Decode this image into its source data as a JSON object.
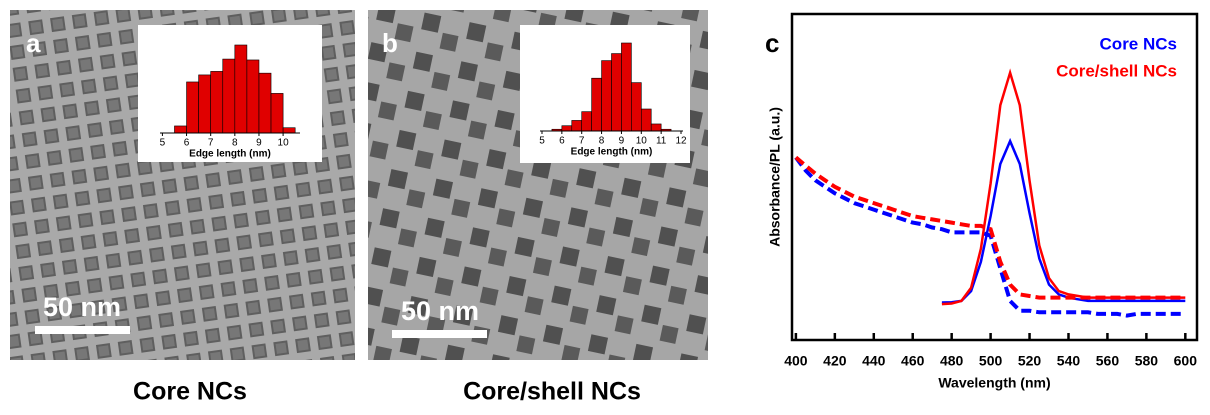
{
  "panels": [
    {
      "label": "a",
      "scale_bar": "50 nm",
      "caption": "Core NCs"
    },
    {
      "label": "b",
      "scale_bar": "50 nm",
      "caption": "Core/shell NCs"
    },
    {
      "label": "c"
    }
  ],
  "chart_data": [
    {
      "type": "histogram",
      "xlabel": "Edge length (nm)",
      "color": "#e00000",
      "bins": [
        5.5,
        6,
        6.5,
        7,
        7.5,
        8,
        8.5,
        9,
        9.5,
        10,
        10.5
      ],
      "values": [
        8,
        58,
        66,
        70,
        84,
        100,
        83,
        68,
        45,
        6
      ],
      "xlim": [
        4.9,
        10.7
      ],
      "xticks": [
        5,
        6,
        7,
        8,
        9,
        10
      ]
    },
    {
      "type": "histogram",
      "xlabel": "Edge length (nm)",
      "color": "#e00000",
      "bins": [
        5.5,
        6,
        6.5,
        7,
        7.5,
        8,
        8.5,
        9,
        9.5,
        10,
        10.5,
        11,
        11.5
      ],
      "values": [
        2,
        6,
        12,
        22,
        60,
        80,
        88,
        100,
        55,
        25,
        8,
        2
      ],
      "xlim": [
        4.9,
        12.1
      ],
      "xticks": [
        5,
        6,
        7,
        8,
        9,
        10,
        11,
        12
      ]
    },
    {
      "type": "line",
      "xlabel": "Wavelength (nm)",
      "ylabel": "Absorbance/PL (a.u.)",
      "legend": "upper right",
      "xlim": [
        398,
        606
      ],
      "ylim": [
        0,
        1
      ],
      "xticks": [
        400,
        420,
        440,
        460,
        480,
        500,
        520,
        540,
        560,
        580,
        600
      ],
      "x": [
        400,
        405,
        410,
        415,
        420,
        425,
        430,
        435,
        440,
        445,
        450,
        455,
        460,
        465,
        470,
        475,
        480,
        485,
        490,
        495,
        500,
        505,
        510,
        515,
        520,
        525,
        530,
        535,
        540,
        545,
        550,
        555,
        560,
        565,
        570,
        575,
        580,
        585,
        590,
        595,
        600
      ],
      "series": [
        {
          "name": "Core NCs",
          "color": "#0000ff",
          "values": [
            null,
            null,
            null,
            null,
            null,
            null,
            null,
            null,
            null,
            null,
            null,
            null,
            null,
            null,
            null,
            0.115,
            0.116,
            0.12,
            0.15,
            0.24,
            0.38,
            0.54,
            0.61,
            0.54,
            0.39,
            0.25,
            0.17,
            0.14,
            0.13,
            0.125,
            0.12,
            0.12,
            0.12,
            0.12,
            0.12,
            0.12,
            0.12,
            0.12,
            0.12,
            0.12,
            0.12
          ]
        },
        {
          "name": "Core/shell NCs",
          "color": "#ff0000",
          "values": [
            null,
            null,
            null,
            null,
            null,
            null,
            null,
            null,
            null,
            null,
            null,
            null,
            null,
            null,
            null,
            0.11,
            0.112,
            0.12,
            0.16,
            0.28,
            0.48,
            0.72,
            0.82,
            0.72,
            0.49,
            0.29,
            0.19,
            0.15,
            0.14,
            0.135,
            0.13,
            0.13,
            0.13,
            0.13,
            0.13,
            0.13,
            0.13,
            0.13,
            0.13,
            0.13,
            0.13
          ]
        },
        {
          "color": "#0000ff",
          "dash": true,
          "values": [
            0.56,
            0.52,
            0.49,
            0.47,
            0.45,
            0.435,
            0.42,
            0.41,
            0.4,
            0.39,
            0.38,
            0.37,
            0.36,
            0.355,
            0.345,
            0.34,
            0.33,
            0.33,
            0.33,
            0.33,
            0.32,
            0.22,
            0.12,
            0.09,
            0.09,
            0.085,
            0.085,
            0.085,
            0.085,
            0.085,
            0.085,
            0.08,
            0.08,
            0.08,
            0.075,
            0.08,
            0.08,
            0.08,
            0.08,
            0.08,
            0.08
          ]
        },
        {
          "color": "#ff0000",
          "dash": true,
          "values": [
            0.56,
            0.535,
            0.51,
            0.49,
            0.47,
            0.455,
            0.44,
            0.43,
            0.42,
            0.41,
            0.4,
            0.39,
            0.38,
            0.375,
            0.37,
            0.365,
            0.36,
            0.355,
            0.35,
            0.35,
            0.34,
            0.24,
            0.17,
            0.14,
            0.135,
            0.13,
            0.13,
            0.13,
            0.13,
            0.13,
            0.13,
            0.13,
            0.13,
            0.13,
            0.13,
            0.13,
            0.13,
            0.13,
            0.13,
            0.13,
            0.13
          ]
        }
      ]
    }
  ]
}
